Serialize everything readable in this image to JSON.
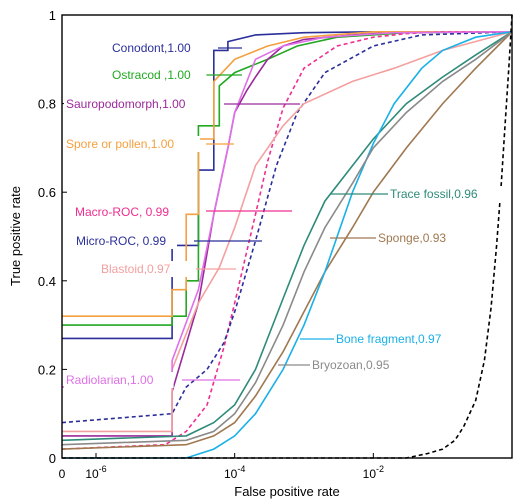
{
  "chart_data": {
    "type": "line",
    "title": "",
    "xlabel": "False positive rate",
    "ylabel": "True positive rate",
    "x_scale": "log (with 0 at left edge)",
    "xlim": [
      0,
      1
    ],
    "ylim": [
      0,
      1
    ],
    "x_ticks": [
      "0",
      "10-6",
      "10-4",
      "10-2"
    ],
    "x_tick_values": [
      0,
      1e-06,
      0.0001,
      0.01
    ],
    "y_ticks": [
      "0",
      "0.2",
      "0.4",
      "0.6",
      "0.8",
      "1"
    ],
    "y_tick_values": [
      0,
      0.2,
      0.4,
      0.6,
      0.8,
      1
    ],
    "grid": false,
    "legend": "inline labels with leader lines",
    "series": [
      {
        "name": "Conodont,1.00",
        "color": "#2b2f9a",
        "dash": "solid",
        "x": [
          0,
          1.25e-05,
          1.25e-05,
          3e-05,
          3e-05,
          5e-05,
          5e-05,
          8e-05,
          8e-05,
          0.0002,
          0.001,
          0.01,
          0.1,
          1
        ],
        "y": [
          0.27,
          0.27,
          0.48,
          0.48,
          0.65,
          0.65,
          0.92,
          0.92,
          0.94,
          0.955,
          0.96,
          0.962,
          0.962,
          0.962
        ]
      },
      {
        "name": "Ostracod ,1.00",
        "color": "#22a822",
        "dash": "solid",
        "x": [
          0,
          1.25e-05,
          1.25e-05,
          2e-05,
          2e-05,
          3e-05,
          3e-05,
          6e-05,
          6e-05,
          0.0001,
          0.0003,
          0.0008,
          0.003,
          0.03,
          1
        ],
        "y": [
          0.3,
          0.3,
          0.32,
          0.32,
          0.4,
          0.4,
          0.75,
          0.75,
          0.84,
          0.87,
          0.9,
          0.93,
          0.95,
          0.96,
          0.962
        ]
      },
      {
        "name": "Sauropodomorph,1.00",
        "color": "#9b2a9b",
        "dash": "solid",
        "x": [
          0,
          1.25e-05,
          1.25e-05,
          3e-05,
          5e-05,
          8e-05,
          0.0001,
          0.00015,
          0.0002,
          0.0003,
          0.0005,
          0.001,
          0.005,
          0.03,
          1
        ],
        "y": [
          0.05,
          0.05,
          0.15,
          0.35,
          0.55,
          0.7,
          0.78,
          0.83,
          0.86,
          0.9,
          0.93,
          0.945,
          0.955,
          0.962,
          0.962
        ]
      },
      {
        "name": "Spore or pollen,1.00",
        "color": "#f5a040",
        "dash": "solid",
        "x": [
          0,
          1.25e-05,
          1.25e-05,
          2e-05,
          2e-05,
          3e-05,
          3e-05,
          5e-05,
          5e-05,
          0.0001,
          0.0003,
          0.001,
          0.01,
          1
        ],
        "y": [
          0.32,
          0.32,
          0.38,
          0.38,
          0.55,
          0.55,
          0.72,
          0.72,
          0.85,
          0.9,
          0.93,
          0.95,
          0.962,
          0.962
        ]
      },
      {
        "name": "Macro-ROC, 0.99",
        "color": "#f02d90",
        "dash": "dashed",
        "x": [
          0,
          1e-05,
          2e-05,
          4e-05,
          7e-05,
          0.0001,
          0.0002,
          0.0003,
          0.0005,
          0.001,
          0.003,
          0.01,
          0.03,
          0.1,
          1
        ],
        "y": [
          0.02,
          0.03,
          0.06,
          0.12,
          0.25,
          0.35,
          0.55,
          0.67,
          0.79,
          0.88,
          0.93,
          0.95,
          0.958,
          0.962,
          0.962
        ]
      },
      {
        "name": "Micro-ROC, 0.99",
        "color": "#2b2f9a",
        "dash": "dashed",
        "x": [
          0,
          1.25e-05,
          2e-05,
          4e-05,
          7e-05,
          0.0001,
          0.0002,
          0.0004,
          0.0008,
          0.002,
          0.01,
          0.05,
          1
        ],
        "y": [
          0.08,
          0.1,
          0.16,
          0.2,
          0.26,
          0.33,
          0.49,
          0.66,
          0.78,
          0.87,
          0.93,
          0.955,
          0.962
        ]
      },
      {
        "name": "Blastoid,0.97",
        "color": "#f4a0a0",
        "dash": "solid",
        "x": [
          0,
          1.25e-05,
          1.25e-05,
          3e-05,
          6e-05,
          0.0001,
          0.0002,
          0.0005,
          0.001,
          0.005,
          0.02,
          0.1,
          1
        ],
        "y": [
          0.06,
          0.06,
          0.2,
          0.35,
          0.43,
          0.52,
          0.66,
          0.75,
          0.8,
          0.85,
          0.88,
          0.92,
          0.962
        ]
      },
      {
        "name": "Radiolarian,1.00",
        "color": "#e070e8",
        "dash": "solid",
        "x": [
          0,
          1.25e-05,
          1.25e-05,
          3e-05,
          5e-05,
          8e-05,
          0.0001,
          0.00015,
          0.0002,
          0.0005,
          0.002,
          0.02,
          1
        ],
        "y": [
          0.16,
          0.16,
          0.22,
          0.38,
          0.55,
          0.7,
          0.78,
          0.85,
          0.9,
          0.93,
          0.95,
          0.96,
          0.962
        ]
      },
      {
        "name": "Trace fossil,0.96",
        "color": "#2e8b7a",
        "dash": "solid",
        "x": [
          0,
          2e-05,
          5e-05,
          0.0001,
          0.0002,
          0.0005,
          0.001,
          0.002,
          0.005,
          0.01,
          0.03,
          0.1,
          0.3,
          1
        ],
        "y": [
          0.04,
          0.05,
          0.08,
          0.12,
          0.2,
          0.36,
          0.48,
          0.58,
          0.66,
          0.72,
          0.8,
          0.86,
          0.91,
          0.962
        ]
      },
      {
        "name": "Sponge,0.93",
        "color": "#a07850",
        "dash": "solid",
        "x": [
          0,
          2e-05,
          5e-05,
          0.0001,
          0.0002,
          0.0005,
          0.001,
          0.002,
          0.005,
          0.01,
          0.03,
          0.1,
          0.3,
          1
        ],
        "y": [
          0.02,
          0.03,
          0.05,
          0.08,
          0.14,
          0.24,
          0.33,
          0.42,
          0.52,
          0.6,
          0.7,
          0.8,
          0.88,
          0.962
        ]
      },
      {
        "name": "Bone fragment,0.97",
        "color": "#1ab0e8",
        "dash": "solid",
        "x": [
          0,
          2e-05,
          5e-05,
          0.0001,
          0.0002,
          0.0005,
          0.001,
          0.002,
          0.005,
          0.01,
          0.02,
          0.05,
          0.1,
          0.3,
          1
        ],
        "y": [
          0.0,
          0.0,
          0.02,
          0.05,
          0.1,
          0.2,
          0.3,
          0.42,
          0.6,
          0.71,
          0.8,
          0.88,
          0.92,
          0.95,
          0.962
        ]
      },
      {
        "name": "Bryozoan,0.95",
        "color": "#8a8a8a",
        "dash": "solid",
        "x": [
          0,
          2e-05,
          5e-05,
          0.0001,
          0.0002,
          0.0005,
          0.001,
          0.002,
          0.005,
          0.01,
          0.03,
          0.1,
          0.3,
          1
        ],
        "y": [
          0.03,
          0.04,
          0.06,
          0.1,
          0.17,
          0.3,
          0.42,
          0.52,
          0.62,
          0.7,
          0.78,
          0.85,
          0.9,
          0.962
        ]
      },
      {
        "name": "",
        "color": "#000000",
        "dash": "dashed",
        "x": [
          0,
          0.03,
          0.06,
          0.1,
          0.15,
          0.2,
          0.3,
          0.4,
          0.5,
          0.6,
          0.7,
          0.8,
          0.9,
          1
        ],
        "y": [
          0.0,
          0.0,
          0.01,
          0.02,
          0.04,
          0.07,
          0.13,
          0.22,
          0.34,
          0.48,
          0.62,
          0.76,
          0.88,
          1.0
        ]
      }
    ],
    "labels": [
      {
        "text": "Conodont,1.00",
        "color": "#2b2f9a"
      },
      {
        "text": "Ostracod ,1.00",
        "color": "#22a822"
      },
      {
        "text": "Sauropodomorph,1.00",
        "color": "#9b2a9b"
      },
      {
        "text": "Spore or pollen,1.00",
        "color": "#f5a040"
      },
      {
        "text": "Macro-ROC, 0.99",
        "color": "#f02d90"
      },
      {
        "text": "Micro-ROC, 0.99",
        "color": "#2b2f9a"
      },
      {
        "text": "Blastoid,0.97",
        "color": "#f4a0a0"
      },
      {
        "text": "Radiolarian,1.00",
        "color": "#e070e8"
      },
      {
        "text": "Trace fossil,0.96",
        "color": "#2e8b7a"
      },
      {
        "text": "Sponge,0.93",
        "color": "#a07850"
      },
      {
        "text": "Bone fragment,0.97",
        "color": "#1ab0e8"
      },
      {
        "text": "Bryozoan,0.95",
        "color": "#8a8a8a"
      }
    ]
  }
}
